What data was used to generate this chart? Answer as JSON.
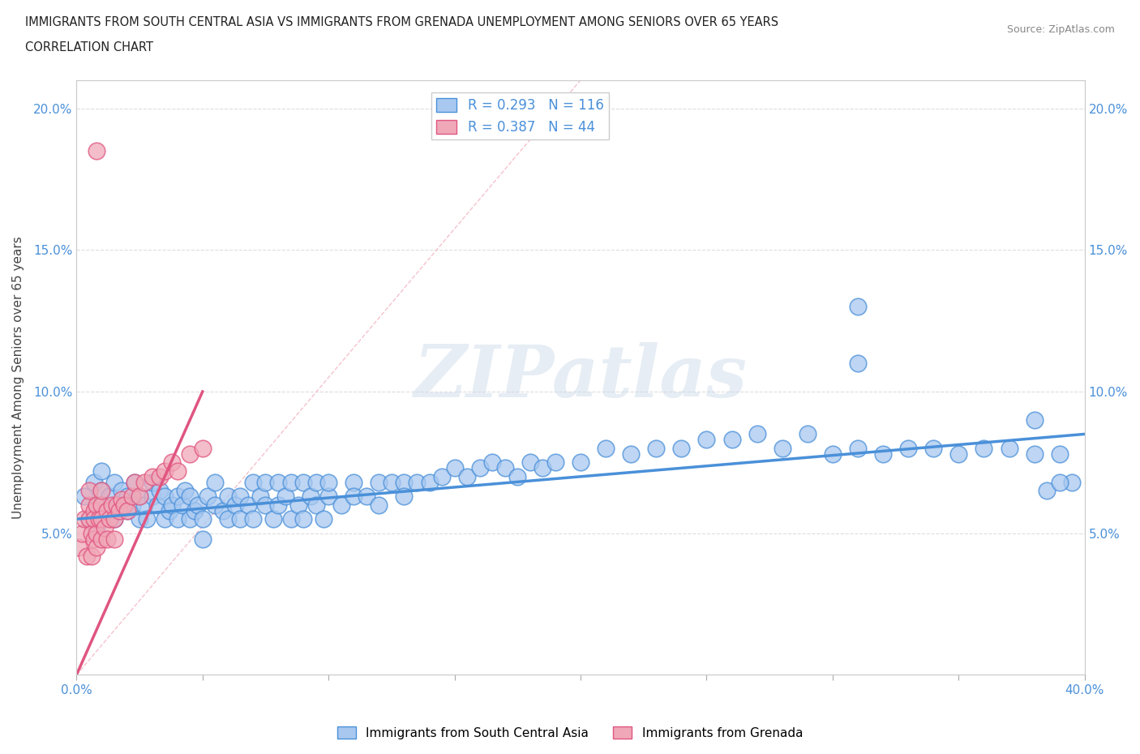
{
  "title_line1": "IMMIGRANTS FROM SOUTH CENTRAL ASIA VS IMMIGRANTS FROM GRENADA UNEMPLOYMENT AMONG SENIORS OVER 65 YEARS",
  "title_line2": "CORRELATION CHART",
  "source": "Source: ZipAtlas.com",
  "ylabel": "Unemployment Among Seniors over 65 years",
  "xlim": [
    0.0,
    0.4
  ],
  "ylim": [
    0.0,
    0.21
  ],
  "xticks": [
    0.0,
    0.05,
    0.1,
    0.15,
    0.2,
    0.25,
    0.3,
    0.35,
    0.4
  ],
  "yticks": [
    0.0,
    0.05,
    0.1,
    0.15,
    0.2
  ],
  "yticklabels": [
    "",
    "5.0%",
    "10.0%",
    "15.0%",
    "20.0%"
  ],
  "color_asia": "#a8c8f0",
  "color_grenada": "#f0a8b8",
  "color_asia_line": "#4a90d9",
  "color_grenada_line": "#e05580",
  "R_asia": 0.293,
  "N_asia": 116,
  "R_grenada": 0.387,
  "N_grenada": 44,
  "legend_label_asia": "Immigrants from South Central Asia",
  "legend_label_grenada": "Immigrants from Grenada",
  "watermark_text": "ZIPatlas",
  "background_color": "#ffffff",
  "grid_color": "#dddddd",
  "asia_x": [
    0.003,
    0.005,
    0.007,
    0.008,
    0.009,
    0.01,
    0.01,
    0.012,
    0.013,
    0.015,
    0.015,
    0.017,
    0.018,
    0.02,
    0.02,
    0.022,
    0.023,
    0.025,
    0.025,
    0.027,
    0.028,
    0.03,
    0.03,
    0.032,
    0.033,
    0.035,
    0.035,
    0.037,
    0.038,
    0.04,
    0.04,
    0.042,
    0.043,
    0.045,
    0.045,
    0.047,
    0.048,
    0.05,
    0.05,
    0.052,
    0.055,
    0.055,
    0.058,
    0.06,
    0.06,
    0.063,
    0.065,
    0.065,
    0.068,
    0.07,
    0.07,
    0.073,
    0.075,
    0.075,
    0.078,
    0.08,
    0.08,
    0.083,
    0.085,
    0.085,
    0.088,
    0.09,
    0.09,
    0.093,
    0.095,
    0.095,
    0.098,
    0.1,
    0.1,
    0.105,
    0.11,
    0.11,
    0.115,
    0.12,
    0.12,
    0.125,
    0.13,
    0.13,
    0.135,
    0.14,
    0.145,
    0.15,
    0.155,
    0.16,
    0.165,
    0.17,
    0.175,
    0.18,
    0.185,
    0.19,
    0.2,
    0.21,
    0.22,
    0.23,
    0.24,
    0.25,
    0.26,
    0.27,
    0.28,
    0.29,
    0.3,
    0.31,
    0.32,
    0.33,
    0.34,
    0.35,
    0.36,
    0.37,
    0.38,
    0.385,
    0.39,
    0.395,
    0.31,
    0.38,
    0.39,
    0.31
  ],
  "asia_y": [
    0.063,
    0.055,
    0.068,
    0.052,
    0.06,
    0.065,
    0.072,
    0.058,
    0.063,
    0.055,
    0.068,
    0.06,
    0.065,
    0.058,
    0.063,
    0.06,
    0.068,
    0.055,
    0.063,
    0.06,
    0.055,
    0.063,
    0.068,
    0.06,
    0.065,
    0.055,
    0.063,
    0.058,
    0.06,
    0.055,
    0.063,
    0.06,
    0.065,
    0.055,
    0.063,
    0.058,
    0.06,
    0.048,
    0.055,
    0.063,
    0.06,
    0.068,
    0.058,
    0.055,
    0.063,
    0.06,
    0.055,
    0.063,
    0.06,
    0.068,
    0.055,
    0.063,
    0.06,
    0.068,
    0.055,
    0.06,
    0.068,
    0.063,
    0.055,
    0.068,
    0.06,
    0.055,
    0.068,
    0.063,
    0.06,
    0.068,
    0.055,
    0.063,
    0.068,
    0.06,
    0.068,
    0.063,
    0.063,
    0.068,
    0.06,
    0.068,
    0.068,
    0.063,
    0.068,
    0.068,
    0.07,
    0.073,
    0.07,
    0.073,
    0.075,
    0.073,
    0.07,
    0.075,
    0.073,
    0.075,
    0.075,
    0.08,
    0.078,
    0.08,
    0.08,
    0.083,
    0.083,
    0.085,
    0.08,
    0.085,
    0.078,
    0.08,
    0.078,
    0.08,
    0.08,
    0.078,
    0.08,
    0.08,
    0.078,
    0.065,
    0.078,
    0.068,
    0.13,
    0.09,
    0.068,
    0.11
  ],
  "grenada_x": [
    0.001,
    0.002,
    0.003,
    0.004,
    0.005,
    0.005,
    0.005,
    0.006,
    0.006,
    0.007,
    0.007,
    0.007,
    0.008,
    0.008,
    0.008,
    0.009,
    0.01,
    0.01,
    0.01,
    0.01,
    0.011,
    0.012,
    0.012,
    0.013,
    0.014,
    0.015,
    0.015,
    0.016,
    0.017,
    0.018,
    0.019,
    0.02,
    0.022,
    0.023,
    0.025,
    0.027,
    0.03,
    0.033,
    0.035,
    0.038,
    0.04,
    0.045,
    0.05,
    0.008
  ],
  "grenada_y": [
    0.045,
    0.05,
    0.055,
    0.042,
    0.06,
    0.065,
    0.055,
    0.05,
    0.042,
    0.058,
    0.048,
    0.055,
    0.045,
    0.05,
    0.06,
    0.055,
    0.048,
    0.06,
    0.055,
    0.065,
    0.052,
    0.058,
    0.048,
    0.055,
    0.06,
    0.055,
    0.048,
    0.06,
    0.058,
    0.062,
    0.06,
    0.058,
    0.063,
    0.068,
    0.063,
    0.068,
    0.07,
    0.07,
    0.072,
    0.075,
    0.072,
    0.078,
    0.08,
    0.185
  ]
}
